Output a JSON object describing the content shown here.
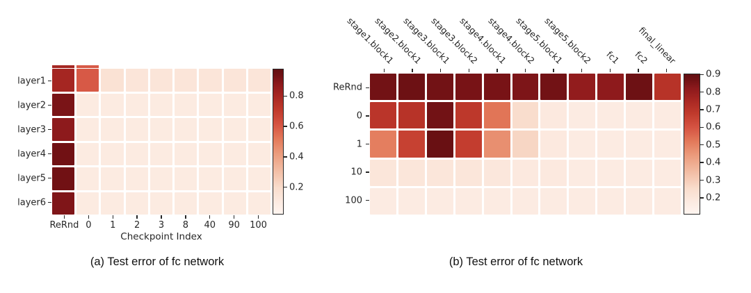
{
  "figure": {
    "caption_a": "(a) Test error of fc network",
    "caption_b": "(b) Test error of fc network"
  },
  "colormap": {
    "name": "Reds",
    "stops": [
      [
        0.0,
        "#fff5f0"
      ],
      [
        0.08,
        "#fcebe2"
      ],
      [
        0.18,
        "#f9ddcd"
      ],
      [
        0.3,
        "#f2bda4"
      ],
      [
        0.42,
        "#eb9b7c"
      ],
      [
        0.52,
        "#e3795a"
      ],
      [
        0.62,
        "#d55342"
      ],
      [
        0.72,
        "#c03a2c"
      ],
      [
        0.82,
        "#a62622"
      ],
      [
        0.9,
        "#8c191c"
      ],
      [
        0.96,
        "#701114"
      ],
      [
        1.0,
        "#620f12"
      ]
    ]
  },
  "chart_data": [
    {
      "id": "a",
      "type": "heatmap",
      "title": "",
      "xlabel": "Checkpoint Index",
      "ylabel": "",
      "rows": [
        "layer1",
        "layer2",
        "layer3",
        "layer4",
        "layer5",
        "layer6"
      ],
      "columns": [
        "ReRnd",
        "0",
        "1",
        "2",
        "3",
        "8",
        "40",
        "90",
        "100"
      ],
      "values": [
        [
          0.81,
          0.6,
          0.16,
          0.14,
          0.14,
          0.14,
          0.14,
          0.14,
          0.14
        ],
        [
          0.92,
          0.1,
          0.1,
          0.1,
          0.1,
          0.1,
          0.1,
          0.1,
          0.1
        ],
        [
          0.88,
          0.1,
          0.1,
          0.1,
          0.1,
          0.1,
          0.1,
          0.1,
          0.1
        ],
        [
          0.94,
          0.1,
          0.1,
          0.1,
          0.1,
          0.1,
          0.1,
          0.1,
          0.1
        ],
        [
          0.94,
          0.1,
          0.1,
          0.1,
          0.1,
          0.1,
          0.1,
          0.1,
          0.1
        ],
        [
          0.91,
          0.1,
          0.1,
          0.1,
          0.1,
          0.1,
          0.1,
          0.1,
          0.1
        ]
      ],
      "vmin": 0.02,
      "vmax": 0.98,
      "colorbar_ticks": [
        "0.8",
        "0.6",
        "0.4",
        "0.2"
      ],
      "top_strip_values": [
        0.81,
        0.6
      ],
      "legend_position": "right-colorbar",
      "grid": false
    },
    {
      "id": "b",
      "type": "heatmap",
      "title": "",
      "xlabel": "",
      "ylabel": "",
      "rows": [
        "ReRnd",
        "0",
        "1",
        "10",
        "100"
      ],
      "columns": [
        "stage1.block1",
        "stage2.block1",
        "stage3.block1",
        "stage3.block2",
        "stage4.block1",
        "stage4.block2",
        "stage5.block1",
        "stage5.block2",
        "fc1",
        "fc2",
        "final_linear"
      ],
      "values": [
        [
          0.87,
          0.88,
          0.87,
          0.86,
          0.86,
          0.85,
          0.87,
          0.81,
          0.82,
          0.88,
          0.71
        ],
        [
          0.7,
          0.71,
          0.87,
          0.69,
          0.53,
          0.25,
          0.18,
          0.17,
          0.17,
          0.17,
          0.17
        ],
        [
          0.51,
          0.66,
          0.89,
          0.67,
          0.47,
          0.27,
          0.18,
          0.17,
          0.17,
          0.17,
          0.17
        ],
        [
          0.2,
          0.2,
          0.2,
          0.2,
          0.19,
          0.18,
          0.18,
          0.17,
          0.17,
          0.17,
          0.17
        ],
        [
          0.17,
          0.17,
          0.17,
          0.17,
          0.17,
          0.17,
          0.17,
          0.17,
          0.17,
          0.17,
          0.17
        ]
      ],
      "vmin": 0.105,
      "vmax": 0.905,
      "colorbar_ticks": [
        "0.9",
        "0.8",
        "0.7",
        "0.6",
        "0.5",
        "0.4",
        "0.3",
        "0.2"
      ],
      "legend_position": "right-colorbar",
      "grid": false
    }
  ]
}
